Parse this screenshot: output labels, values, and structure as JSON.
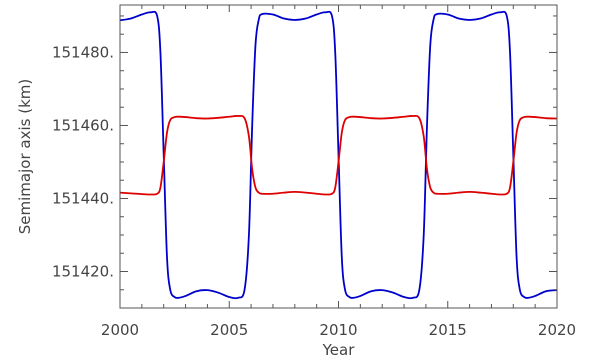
{
  "chart_data": {
    "type": "line",
    "title": "",
    "xlabel": "Year",
    "ylabel": "Semimajor axis (km)",
    "xlim": [
      2000,
      2020
    ],
    "ylim": [
      151410,
      151493
    ],
    "xticks": [
      2000,
      2005,
      2010,
      2015,
      2020
    ],
    "xtick_labels": [
      "2000",
      "2005",
      "2010",
      "2015",
      "2020"
    ],
    "yticks": [
      151420,
      151440,
      151460,
      151480
    ],
    "ytick_labels": [
      "151420.",
      "151440.",
      "151460.",
      "151480."
    ],
    "grid": false,
    "series": [
      {
        "color": "#0000cc",
        "x": [
          2000.0,
          2000.5,
          2001.0,
          2001.4,
          2001.7,
          2001.85,
          2002.0,
          2002.15,
          2002.3,
          2002.5,
          2002.7,
          2003.0,
          2003.5,
          2004.0,
          2004.5,
          2005.0,
          2005.4,
          2005.7,
          2005.9,
          2006.05,
          2006.2,
          2006.35,
          2006.5,
          2007.0,
          2007.5,
          2008.0,
          2008.5,
          2009.0,
          2009.4,
          2009.7,
          2009.85,
          2010.0,
          2010.15,
          2010.3,
          2010.5,
          2010.7,
          2011.0,
          2011.5,
          2012.0,
          2012.5,
          2013.0,
          2013.4,
          2013.7,
          2013.9,
          2014.05,
          2014.2,
          2014.35,
          2014.5,
          2015.0,
          2015.5,
          2016.0,
          2016.5,
          2017.0,
          2017.4,
          2017.7,
          2017.85,
          2018.0,
          2018.15,
          2018.3,
          2018.5,
          2018.7,
          2019.0,
          2019.5,
          2020.0
        ],
        "y": [
          151488.8,
          151489.3,
          151490.4,
          151491.0,
          151490.0,
          151480.0,
          151452.0,
          151424.0,
          151415.0,
          151413.0,
          151412.8,
          151413.3,
          151414.6,
          151414.9,
          151414.2,
          151413.0,
          151412.8,
          151415.0,
          151430.0,
          151460.0,
          151482.0,
          151489.0,
          151490.5,
          151490.4,
          151489.3,
          151488.9,
          151489.3,
          151490.4,
          151491.0,
          151490.0,
          151480.0,
          151452.0,
          151424.0,
          151415.0,
          151413.0,
          151412.8,
          151413.3,
          151414.6,
          151414.9,
          151414.2,
          151413.0,
          151412.8,
          151415.0,
          151430.0,
          151460.0,
          151482.0,
          151489.0,
          151490.5,
          151490.4,
          151489.3,
          151488.9,
          151489.3,
          151490.4,
          151491.0,
          151490.0,
          151480.0,
          151452.0,
          151424.0,
          151415.0,
          151413.0,
          151412.8,
          151413.3,
          151414.6,
          151414.9
        ]
      },
      {
        "color": "#dd0000",
        "x": [
          2000.0,
          2000.5,
          2001.0,
          2001.4,
          2001.7,
          2001.85,
          2002.0,
          2002.15,
          2002.3,
          2002.5,
          2002.7,
          2003.0,
          2003.5,
          2004.0,
          2004.5,
          2005.0,
          2005.4,
          2005.7,
          2005.9,
          2006.05,
          2006.2,
          2006.35,
          2006.5,
          2007.0,
          2007.5,
          2008.0,
          2008.5,
          2009.0,
          2009.4,
          2009.7,
          2009.85,
          2010.0,
          2010.15,
          2010.3,
          2010.5,
          2010.7,
          2011.0,
          2011.5,
          2012.0,
          2012.5,
          2013.0,
          2013.4,
          2013.7,
          2013.9,
          2014.05,
          2014.2,
          2014.35,
          2014.5,
          2015.0,
          2015.5,
          2016.0,
          2016.5,
          2017.0,
          2017.4,
          2017.7,
          2017.85,
          2018.0,
          2018.15,
          2018.3,
          2018.5,
          2018.7,
          2019.0,
          2019.5,
          2020.0
        ],
        "y": [
          151441.6,
          151441.4,
          151441.2,
          151441.1,
          151441.3,
          151443.0,
          151450.0,
          151458.0,
          151461.5,
          151462.3,
          151462.4,
          151462.3,
          151462.0,
          151461.9,
          151462.1,
          151462.4,
          151462.6,
          151462.0,
          151457.0,
          151448.0,
          151443.0,
          151441.6,
          151441.3,
          151441.3,
          151441.6,
          151441.8,
          151441.6,
          151441.3,
          151441.1,
          151441.3,
          151443.0,
          151450.0,
          151458.0,
          151461.5,
          151462.3,
          151462.4,
          151462.3,
          151462.0,
          151461.9,
          151462.1,
          151462.4,
          151462.6,
          151462.0,
          151457.0,
          151448.0,
          151443.0,
          151441.6,
          151441.3,
          151441.3,
          151441.6,
          151441.8,
          151441.6,
          151441.3,
          151441.1,
          151441.3,
          151443.0,
          151450.0,
          151458.0,
          151461.5,
          151462.3,
          151462.4,
          151462.3,
          151462.0,
          151461.9
        ]
      }
    ]
  }
}
